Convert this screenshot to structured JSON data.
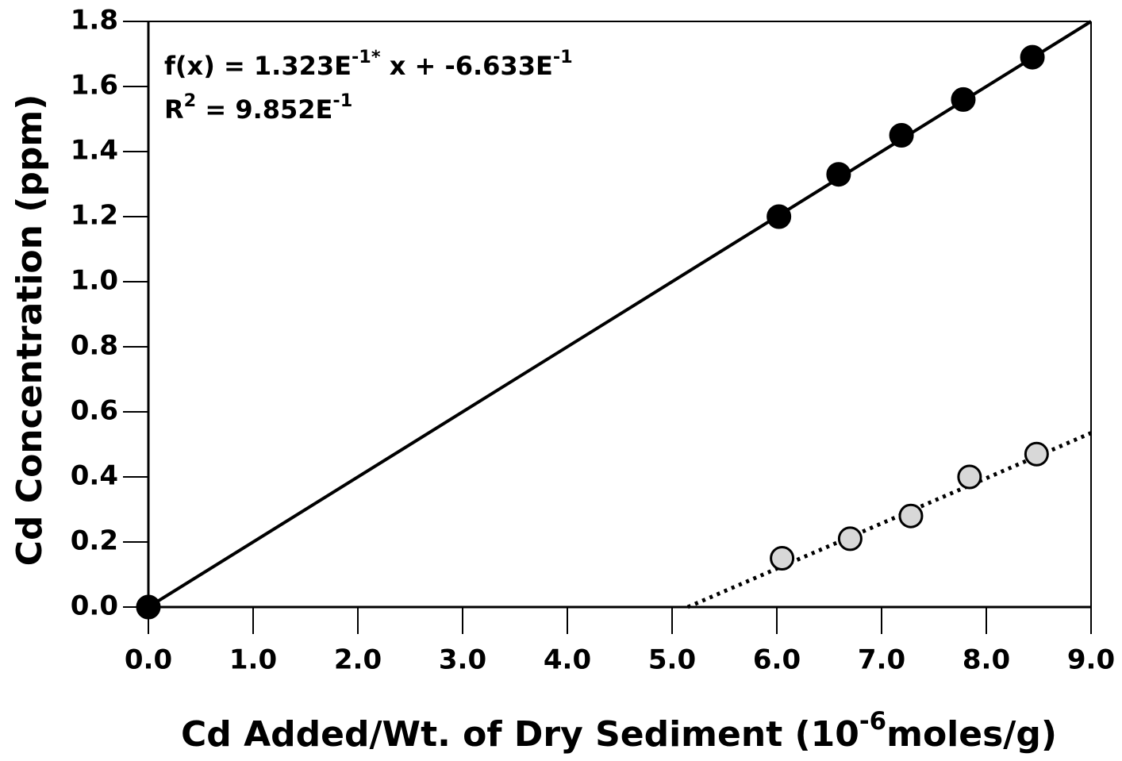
{
  "chart_data": {
    "type": "scatter",
    "equation": [
      "f(x) = 1.323E",
      "-1*",
      "  x + -6.633E",
      "-1"
    ],
    "r_squared": [
      "R",
      "2",
      " = 9.852E",
      "-1"
    ],
    "x_label": [
      "Cd Added/Wt. of Dry Sediment (10",
      "-6",
      "moles/g)"
    ],
    "y_label": "Cd Concentration (ppm)",
    "xlim": [
      0,
      9
    ],
    "ylim": [
      0,
      1.8
    ],
    "xticks": [
      {
        "value": 0,
        "label": "0.0"
      },
      {
        "value": 1,
        "label": "1.0"
      },
      {
        "value": 2,
        "label": "2.0"
      },
      {
        "value": 3,
        "label": "3.0"
      },
      {
        "value": 4,
        "label": "4.0"
      },
      {
        "value": 5,
        "label": "5.0"
      },
      {
        "value": 6,
        "label": "6.0"
      },
      {
        "value": 7,
        "label": "7.0"
      },
      {
        "value": 8,
        "label": "8.0"
      },
      {
        "value": 9,
        "label": "9.0"
      }
    ],
    "yticks": [
      {
        "value": 0,
        "label": "0.0"
      },
      {
        "value": 0.2,
        "label": "0.2"
      },
      {
        "value": 0.4,
        "label": "0.4"
      },
      {
        "value": 0.6,
        "label": "0.6"
      },
      {
        "value": 0.8,
        "label": "0.8"
      },
      {
        "value": 1.0,
        "label": "1.0"
      },
      {
        "value": 1.2,
        "label": "1.2"
      },
      {
        "value": 1.4,
        "label": "1.4"
      },
      {
        "value": 1.6,
        "label": "1.6"
      },
      {
        "value": 1.8,
        "label": "1.8"
      }
    ],
    "series": [
      {
        "style": "marker",
        "color": "#000000",
        "x": [
          0,
          6.02,
          6.59,
          7.19,
          7.78,
          8.44
        ],
        "values": [
          0,
          1.2,
          1.33,
          1.45,
          1.56,
          1.69
        ]
      },
      {
        "style": "marker",
        "color": "#d8d8d8",
        "x": [
          6.05,
          6.7,
          7.28,
          7.84,
          8.48
        ],
        "values": [
          0.15,
          0.21,
          0.28,
          0.4,
          0.47
        ]
      },
      {
        "style": "solid",
        "color": "#000000",
        "x": [
          0,
          9
        ],
        "values": [
          0,
          1.8
        ]
      },
      {
        "style": "dotted",
        "color": "#000000",
        "x": [
          5.15,
          9
        ],
        "values": [
          0,
          0.535
        ]
      }
    ]
  }
}
